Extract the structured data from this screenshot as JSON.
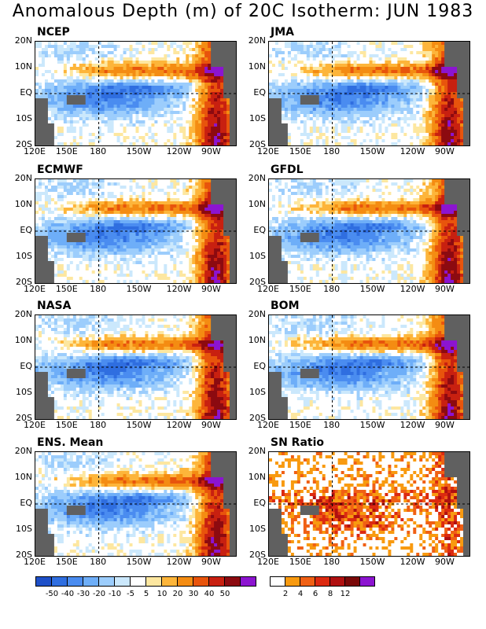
{
  "title": "Anomalous Depth (m) of 20C Isotherm: JUN 1983",
  "y_ticks": [
    "20N",
    "10N",
    "EQ",
    "10S",
    "20S"
  ],
  "x_ticks": [
    "120E",
    "150E",
    "180",
    "150W",
    "120W",
    "90W"
  ],
  "colors": {
    "land": "#606060",
    "neg": [
      "#1e50c8",
      "#2f6ee0",
      "#4a8cf0",
      "#6eaef8",
      "#9ccdfc",
      "#cbe8fc"
    ],
    "zero": "#ffffff",
    "pos": [
      "#fde7a0",
      "#fdb53a",
      "#f48c12",
      "#e8540c",
      "#c82010",
      "#8c0a10",
      "#8c14d0"
    ],
    "sn": [
      "#ffffff",
      "#f89a10",
      "#f06014",
      "#dc2a10",
      "#b01010",
      "#7a0808",
      "#8c14d0"
    ]
  },
  "panels": [
    {
      "name": "NCEP",
      "type": "anom"
    },
    {
      "name": "JMA",
      "type": "anom"
    },
    {
      "name": "ECMWF",
      "type": "anom"
    },
    {
      "name": "GFDL",
      "type": "anom"
    },
    {
      "name": "NASA",
      "type": "anom"
    },
    {
      "name": "BOM",
      "type": "anom"
    },
    {
      "name": "ENS. Mean",
      "type": "anom"
    },
    {
      "name": "SN Ratio",
      "type": "sn"
    }
  ],
  "colorbar_anom": {
    "labels": [
      "-50",
      "-40",
      "-30",
      "-20",
      "-10",
      "-5",
      "5",
      "10",
      "20",
      "30",
      "40",
      "50"
    ]
  },
  "colorbar_sn": {
    "labels": [
      "2",
      "4",
      "6",
      "8",
      "12"
    ]
  },
  "chart_data": {
    "type": "heatmap",
    "title": "Anomalous Depth (m) of 20C Isotherm: JUN 1983",
    "lon_range": [
      "120E",
      "70W"
    ],
    "lat_range": [
      "20S",
      "20N"
    ],
    "grid": "dashed lines at 180 and EQ",
    "anomaly_levels": [
      -50,
      -40,
      -30,
      -20,
      -10,
      -5,
      5,
      10,
      20,
      30,
      40,
      50
    ],
    "sn_levels": [
      2,
      4,
      6,
      8,
      12
    ],
    "units": "m"
  }
}
